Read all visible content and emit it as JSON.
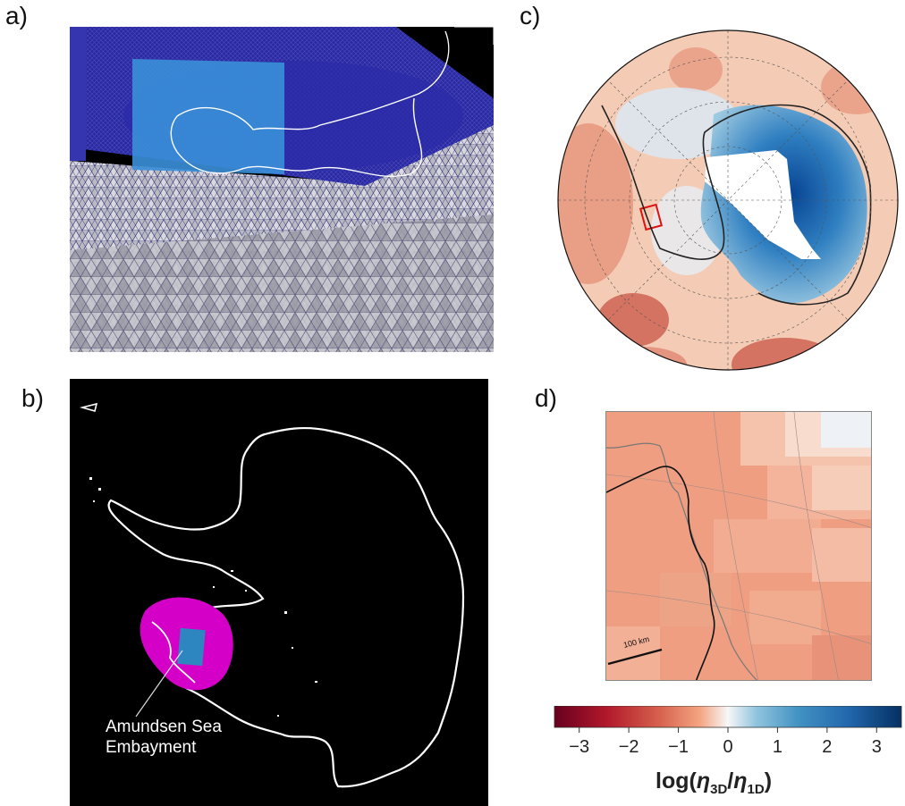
{
  "panels": {
    "a": {
      "label": "a)"
    },
    "b": {
      "label": "b)",
      "annotation_line1": "Amundsen Sea",
      "annotation_line2": "Embayment"
    },
    "c": {
      "label": "c)"
    },
    "d": {
      "label": "d)",
      "scale_bar": "100 km"
    }
  },
  "colorbar": {
    "ticks": [
      "−3",
      "−2",
      "−1",
      "0",
      "1",
      "2",
      "3"
    ],
    "range": [
      -3.5,
      3.5
    ],
    "label_prefix": "log(",
    "eta_3d": "η",
    "sub_3d": "3D",
    "slash": "/",
    "eta_1d": "η",
    "sub_1d": "1D",
    "label_suffix": ")"
  },
  "colors": {
    "negative_dark": "#67001f",
    "negative": "#e07a5f",
    "neutral": "#f7f7f7",
    "positive": "#4393c3",
    "positive_dark": "#053061",
    "mesh": "#2a2a9a",
    "model_region": "#d400c8",
    "box": "#2e86c1",
    "highlight_box": "#e01010"
  }
}
